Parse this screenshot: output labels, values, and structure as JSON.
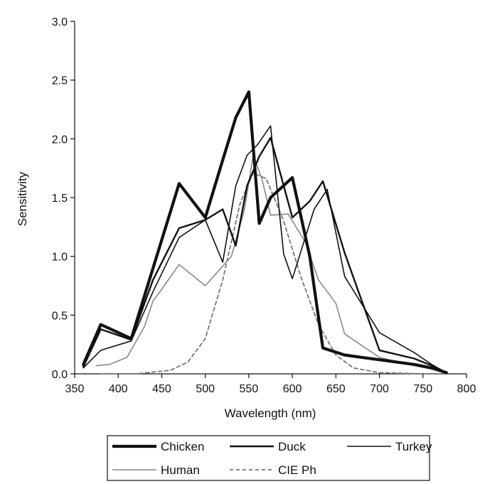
{
  "chart_data": {
    "type": "line",
    "xlabel": "Wavelength (nm)",
    "ylabel": "Sensitivity",
    "xlim": [
      350,
      800
    ],
    "ylim": [
      0,
      3.0
    ],
    "x_ticks": [
      "350",
      "400",
      "450",
      "500",
      "550",
      "600",
      "650",
      "700",
      "750",
      "800"
    ],
    "y_ticks": [
      "0.0",
      "0.5",
      "1.0",
      "1.5",
      "2.0",
      "2.5",
      "3.0"
    ],
    "grid": false,
    "legend_position": "bottom",
    "series": [
      {
        "name": "Chicken",
        "color": "#111111",
        "style": "thick",
        "x": [
          360,
          380,
          415,
          440,
          470,
          500,
          520,
          535,
          550,
          562,
          575,
          600,
          620,
          635,
          660,
          700,
          740,
          760,
          777
        ],
        "y": [
          0.08,
          0.42,
          0.3,
          0.9,
          1.62,
          1.33,
          1.82,
          2.18,
          2.4,
          1.28,
          1.5,
          1.67,
          1.0,
          0.22,
          0.16,
          0.12,
          0.08,
          0.05,
          0.01
        ]
      },
      {
        "name": "Duck",
        "color": "#111111",
        "style": "medium",
        "x": [
          360,
          380,
          415,
          440,
          470,
          500,
          520,
          535,
          548,
          562,
          575,
          600,
          620,
          635,
          660,
          700,
          740,
          760,
          777
        ],
        "y": [
          0.06,
          0.38,
          0.29,
          0.8,
          1.24,
          1.31,
          1.4,
          1.09,
          1.6,
          1.85,
          2.01,
          1.33,
          1.47,
          1.64,
          1.03,
          0.2,
          0.13,
          0.07,
          0.01
        ]
      },
      {
        "name": "Turkey",
        "color": "#111111",
        "style": "thin",
        "x": [
          360,
          380,
          415,
          440,
          470,
          500,
          520,
          535,
          548,
          560,
          575,
          590,
          600,
          625,
          640,
          660,
          700,
          740,
          760,
          777
        ],
        "y": [
          0.05,
          0.2,
          0.28,
          0.7,
          1.16,
          1.31,
          0.95,
          1.6,
          1.86,
          1.95,
          2.11,
          1.02,
          0.81,
          1.4,
          1.57,
          0.83,
          0.35,
          0.18,
          0.08,
          0.01
        ]
      },
      {
        "name": "Human",
        "color": "#888888",
        "style": "thin",
        "x": [
          375,
          390,
          410,
          430,
          440,
          450,
          470,
          500,
          530,
          545,
          555,
          565,
          575,
          595,
          615,
          630,
          650,
          660,
          700,
          740,
          760,
          777
        ],
        "y": [
          0.07,
          0.08,
          0.14,
          0.4,
          0.62,
          0.72,
          0.93,
          0.75,
          1.0,
          1.4,
          1.86,
          1.66,
          1.35,
          1.36,
          1.12,
          0.8,
          0.6,
          0.34,
          0.14,
          0.07,
          0.04,
          0.01
        ]
      },
      {
        "name": "CIE Ph",
        "color": "#777777",
        "style": "dashed",
        "x": [
          380,
          420,
          460,
          480,
          500,
          520,
          540,
          555,
          570,
          590,
          610,
          630,
          650,
          670,
          700,
          750,
          777
        ],
        "y": [
          0.0,
          0.0,
          0.03,
          0.1,
          0.3,
          0.8,
          1.45,
          1.71,
          1.66,
          1.3,
          0.82,
          0.42,
          0.16,
          0.05,
          0.01,
          0.0,
          0.0
        ]
      }
    ]
  }
}
